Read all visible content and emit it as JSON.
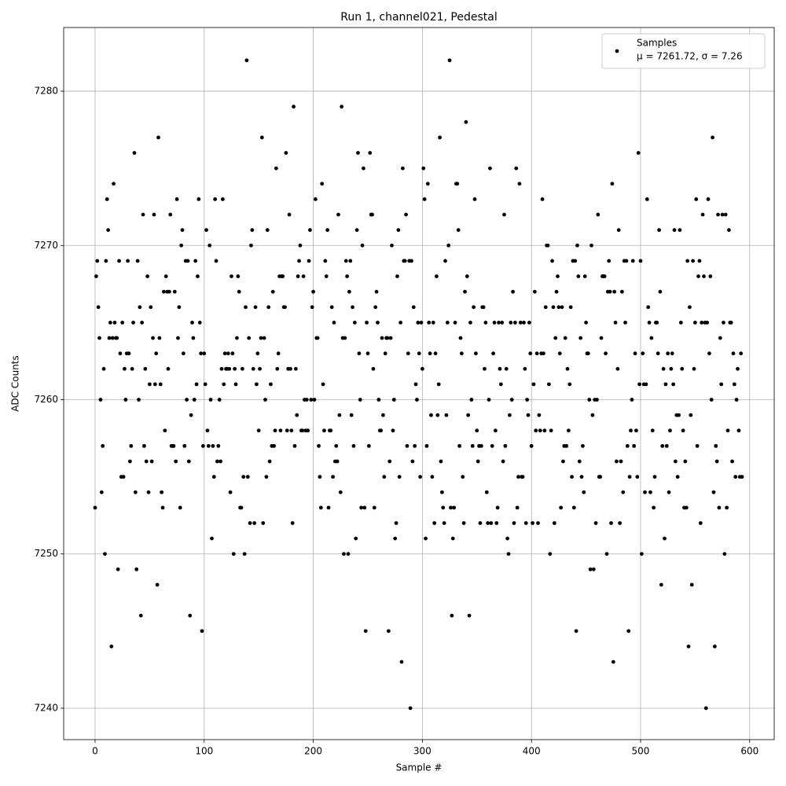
{
  "chart_data": {
    "type": "scatter",
    "title": "Run 1, channel021, Pedestal",
    "xlabel": "Sample #",
    "ylabel": "ADC Counts",
    "x": [
      0,
      1,
      2,
      3,
      4,
      5,
      6,
      7,
      8,
      9,
      10,
      11,
      12,
      13,
      14,
      15,
      16,
      17,
      18,
      19,
      20,
      21,
      22,
      23,
      24,
      25,
      26,
      27,
      28,
      29,
      30,
      31,
      32,
      33,
      34,
      35,
      36,
      37,
      38,
      39,
      40,
      41,
      42,
      43,
      44,
      45,
      46,
      47,
      48,
      49,
      50,
      51,
      52,
      53,
      54,
      55,
      56,
      57,
      58,
      59,
      60,
      61,
      62,
      63,
      64,
      65,
      66,
      67,
      68,
      69,
      70,
      71,
      72,
      73,
      74,
      75,
      76,
      77,
      78,
      79,
      80,
      81,
      82,
      83,
      84,
      85,
      86,
      87,
      88,
      89,
      90,
      91,
      92,
      93,
      94,
      95,
      96,
      97,
      98,
      99,
      100,
      101,
      102,
      103,
      104,
      105,
      106,
      107,
      108,
      109,
      110,
      111,
      112,
      113,
      114,
      115,
      116,
      117,
      118,
      119,
      120,
      121,
      122,
      123,
      124,
      125,
      126,
      127,
      128,
      129,
      130,
      131,
      132,
      133,
      134,
      135,
      136,
      137,
      138,
      139,
      140,
      141,
      142,
      143,
      144,
      145,
      146,
      147,
      148,
      149,
      150,
      151,
      152,
      153,
      154,
      155,
      156,
      157,
      158,
      159,
      160,
      161,
      162,
      163,
      164,
      165,
      166,
      167,
      168,
      169,
      170,
      171,
      172,
      173,
      174,
      175,
      176,
      177,
      178,
      179,
      180,
      181,
      182,
      183,
      184,
      185,
      186,
      187,
      188,
      189,
      190,
      191,
      192,
      193,
      194,
      195,
      196,
      197,
      198,
      199,
      200,
      201,
      202,
      203,
      204,
      205,
      206,
      207,
      208,
      209,
      210,
      211,
      212,
      213,
      214,
      215,
      216,
      217,
      218,
      219,
      220,
      221,
      222,
      223,
      224,
      225,
      226,
      227,
      228,
      229,
      230,
      231,
      232,
      233,
      234,
      235,
      236,
      237,
      238,
      239,
      240,
      241,
      242,
      243,
      244,
      245,
      246,
      247,
      248,
      249,
      250,
      251,
      252,
      253,
      254,
      255,
      256,
      257,
      258,
      259,
      260,
      261,
      262,
      263,
      264,
      265,
      266,
      267,
      268,
      269,
      270,
      271,
      272,
      273,
      274,
      275,
      276,
      277,
      278,
      279,
      280,
      281,
      282,
      283,
      284,
      285,
      286,
      287,
      288,
      289,
      290,
      291,
      292,
      293,
      294,
      295,
      296,
      297,
      298,
      299,
      300,
      301,
      302,
      303,
      304,
      305,
      306,
      307,
      308,
      309,
      310,
      311,
      312,
      313,
      314,
      315,
      316,
      317,
      318,
      319,
      320,
      321,
      322,
      323,
      324,
      325,
      326,
      327,
      328,
      329,
      330,
      331,
      332,
      333,
      334,
      335,
      336,
      337,
      338,
      339,
      340,
      341,
      342,
      343,
      344,
      345,
      346,
      347,
      348,
      349,
      350,
      351,
      352,
      353,
      354,
      355,
      356,
      357,
      358,
      359,
      360,
      361,
      362,
      363,
      364,
      365,
      366,
      367,
      368,
      369,
      370,
      371,
      372,
      373,
      374,
      375,
      376,
      377,
      378,
      379,
      380,
      381,
      382,
      383,
      384,
      385,
      386,
      387,
      388,
      389,
      390,
      391,
      392,
      393,
      394,
      395,
      396,
      397,
      398,
      399,
      400,
      401,
      402,
      403,
      404,
      405,
      406,
      407,
      408,
      409,
      410,
      411,
      412,
      413,
      414,
      415,
      416,
      417,
      418,
      419,
      420,
      421,
      422,
      423,
      424,
      425,
      426,
      427,
      428,
      429,
      430,
      431,
      432,
      433,
      434,
      435,
      436,
      437,
      438,
      439,
      440,
      441,
      442,
      443,
      444,
      445,
      446,
      447,
      448,
      449,
      450,
      451,
      452,
      453,
      454,
      455,
      456,
      457,
      458,
      459,
      460,
      461,
      462,
      463,
      464,
      465,
      466,
      467,
      468,
      469,
      470,
      471,
      472,
      473,
      474,
      475,
      476,
      477,
      478,
      479,
      480,
      481,
      482,
      483,
      484,
      485,
      486,
      487,
      488,
      489,
      490,
      491,
      492,
      493,
      494,
      495,
      496,
      497,
      498,
      499,
      500,
      501,
      502,
      503,
      504,
      505,
      506,
      507,
      508,
      509,
      510,
      511,
      512,
      513,
      514,
      515,
      516,
      517,
      518,
      519,
      520,
      521,
      522,
      523,
      524,
      525,
      526,
      527,
      528,
      529,
      530,
      531,
      532,
      533,
      534,
      535,
      536,
      537,
      538,
      539,
      540,
      541,
      542,
      543,
      544,
      545,
      546,
      547,
      548,
      549,
      550,
      551,
      552,
      553,
      554,
      555,
      556,
      557,
      558,
      559,
      560,
      561,
      562,
      563,
      564,
      565,
      566,
      567,
      568,
      569,
      570,
      571,
      572,
      573,
      574,
      575,
      576,
      577,
      578,
      579,
      580,
      581,
      582,
      583,
      584,
      585,
      586,
      587,
      588,
      589,
      590,
      591,
      592,
      593
    ],
    "series": [
      {
        "name": "Samples",
        "legend_note": "μ = 7261.72, σ = 7.26",
        "color": "#000000",
        "values": [
          7253,
          7268,
          7269,
          7266,
          7264,
          7260,
          7254,
          7257,
          7262,
          7250,
          7269,
          7273,
          7271,
          7264,
          7265,
          7244,
          7264,
          7274,
          7265,
          7264,
          7264,
          7249,
          7269,
          7263,
          7255,
          7265,
          7255,
          7262,
          7260,
          7263,
          7269,
          7263,
          7256,
          7257,
          7262,
          7265,
          7276,
          7254,
          7249,
          7269,
          7260,
          7266,
          7246,
          7265,
          7272,
          7257,
          7262,
          7256,
          7268,
          7254,
          7261,
          7266,
          7256,
          7264,
          7272,
          7261,
          7263,
          7248,
          7277,
          7264,
          7261,
          7254,
          7253,
          7267,
          7258,
          7268,
          7267,
          7262,
          7267,
          7272,
          7257,
          7257,
          7257,
          7267,
          7256,
          7273,
          7264,
          7266,
          7253,
          7270,
          7271,
          7263,
          7257,
          7269,
          7260,
          7269,
          7256,
          7246,
          7259,
          7265,
          7264,
          7260,
          7269,
          7261,
          7268,
          7273,
          7265,
          7263,
          7245,
          7257,
          7263,
          7261,
          7271,
          7258,
          7257,
          7270,
          7260,
          7251,
          7257,
          7255,
          7273,
          7269,
          7256,
          7257,
          7260,
          7256,
          7262,
          7273,
          7261,
          7263,
          7262,
          7262,
          7263,
          7262,
          7254,
          7268,
          7263,
          7250,
          7262,
          7261,
          7264,
          7268,
          7267,
          7253,
          7253,
          7262,
          7255,
          7250,
          7266,
          7282,
          7255,
          7264,
          7252,
          7270,
          7271,
          7262,
          7252,
          7266,
          7261,
          7263,
          7258,
          7262,
          7264,
          7277,
          7252,
          7264,
          7260,
          7255,
          7271,
          7266,
          7256,
          7261,
          7257,
          7267,
          7257,
          7258,
          7275,
          7262,
          7263,
          7268,
          7258,
          7268,
          7268,
          7266,
          7266,
          7276,
          7258,
          7262,
          7272,
          7262,
          7258,
          7252,
          7279,
          7257,
          7262,
          7259,
          7268,
          7269,
          7270,
          7258,
          7258,
          7268,
          7260,
          7258,
          7260,
          7258,
          7269,
          7271,
          7260,
          7266,
          7267,
          7260,
          7273,
          7264,
          7264,
          7257,
          7255,
          7253,
          7274,
          7261,
          7258,
          7269,
          7268,
          7271,
          7253,
          7258,
          7258,
          7266,
          7255,
          7265,
          7256,
          7257,
          7256,
          7272,
          7259,
          7254,
          7279,
          7264,
          7250,
          7264,
          7269,
          7268,
          7250,
          7267,
          7269,
          7259,
          7266,
          7257,
          7265,
          7251,
          7271,
          7276,
          7263,
          7260,
          7253,
          7270,
          7275,
          7253,
          7245,
          7265,
          7263,
          7257,
          7276,
          7272,
          7272,
          7262,
          7253,
          7266,
          7267,
          7265,
          7260,
          7258,
          7258,
          7264,
          7259,
          7255,
          7263,
          7264,
          7264,
          7245,
          7256,
          7264,
          7270,
          7258,
          7260,
          7251,
          7252,
          7268,
          7271,
          7255,
          7265,
          7243,
          7275,
          7269,
          7269,
          7272,
          7257,
          7263,
          7269,
          7240,
          7269,
          7256,
          7266,
          7257,
          7261,
          7260,
          7265,
          7263,
          7255,
          7265,
          7262,
          7275,
          7273,
          7251,
          7257,
          7274,
          7265,
          7263,
          7259,
          7255,
          7265,
          7252,
          7263,
          7268,
          7259,
          7261,
          7277,
          7256,
          7254,
          7253,
          7252,
          7269,
          7259,
          7265,
          7270,
          7282,
          7253,
          7246,
          7251,
          7253,
          7265,
          7274,
          7274,
          7271,
          7257,
          7264,
          7263,
          7255,
          7252,
          7267,
          7278,
          7268,
          7259,
          7246,
          7265,
          7260,
          7257,
          7266,
          7273,
          7263,
          7258,
          7256,
          7257,
          7252,
          7257,
          7266,
          7266,
          7262,
          7265,
          7254,
          7252,
          7260,
          7275,
          7252,
          7257,
          7263,
          7265,
          7258,
          7252,
          7253,
          7265,
          7262,
          7261,
          7265,
          7256,
          7272,
          7257,
          7262,
          7251,
          7250,
          7259,
          7265,
          7260,
          7267,
          7252,
          7265,
          7275,
          7253,
          7255,
          7274,
          7265,
          7255,
          7255,
          7265,
          7262,
          7252,
          7260,
          7259,
          7265,
          7263,
          7257,
          7252,
          7261,
          7267,
          7258,
          7263,
          7252,
          7259,
          7258,
          7263,
          7273,
          7263,
          7258,
          7266,
          7270,
          7270,
          7261,
          7250,
          7258,
          7269,
          7266,
          7252,
          7264,
          7267,
          7268,
          7266,
          7263,
          7253,
          7266,
          7256,
          7257,
          7264,
          7257,
          7262,
          7258,
          7261,
          7266,
          7255,
          7269,
          7253,
          7269,
          7245,
          7270,
          7268,
          7256,
          7264,
          7255,
          7257,
          7254,
          7268,
          7265,
          7263,
          7263,
          7260,
          7249,
          7270,
          7259,
          7249,
          7260,
          7252,
          7260,
          7272,
          7255,
          7255,
          7264,
          7268,
          7268,
          7268,
          7263,
          7250,
          7267,
          7269,
          7267,
          7252,
          7274,
          7243,
          7267,
          7265,
          7256,
          7262,
          7271,
          7252,
          7256,
          7267,
          7254,
          7269,
          7265,
          7269,
          7257,
          7245,
          7255,
          7258,
          7260,
          7269,
          7257,
          7263,
          7258,
          7255,
          7276,
          7261,
          7269,
          7250,
          7263,
          7261,
          7254,
          7261,
          7273,
          7266,
          7265,
          7254,
          7264,
          7258,
          7253,
          7255,
          7265,
          7265,
          7263,
          7271,
          7267,
          7248,
          7257,
          7262,
          7251,
          7261,
          7257,
          7263,
          7254,
          7258,
          7262,
          7263,
          7261,
          7271,
          7256,
          7259,
          7255,
          7259,
          7271,
          7265,
          7262,
          7258,
          7253,
          7256,
          7253,
          7269,
          7244,
          7266,
          7259,
          7248,
          7269,
          7262,
          7265,
          7273,
          7257,
          7268,
          7269,
          7252,
          7265,
          7272,
          7268,
          7265,
          7240,
          7265,
          7273,
          7263,
          7268,
          7260,
          7277,
          7254,
          7244,
          7257,
          7256,
          7272,
          7253,
          7264,
          7261,
          7272,
          7265,
          7250,
          7272,
          7253,
          7258,
          7271,
          7265,
          7265,
          7256,
          7263,
          7261,
          7255,
          7260,
          7262,
          7258,
          7255,
          7263,
          7255
        ]
      }
    ],
    "xlim": [
      -28.8,
      622.5
    ],
    "ylim": [
      7237.96,
      7284.13
    ],
    "xticks": [
      0,
      100,
      200,
      300,
      400,
      500,
      600
    ],
    "yticks": [
      7240,
      7250,
      7260,
      7270,
      7280
    ],
    "grid": true,
    "legend": "upper right"
  }
}
